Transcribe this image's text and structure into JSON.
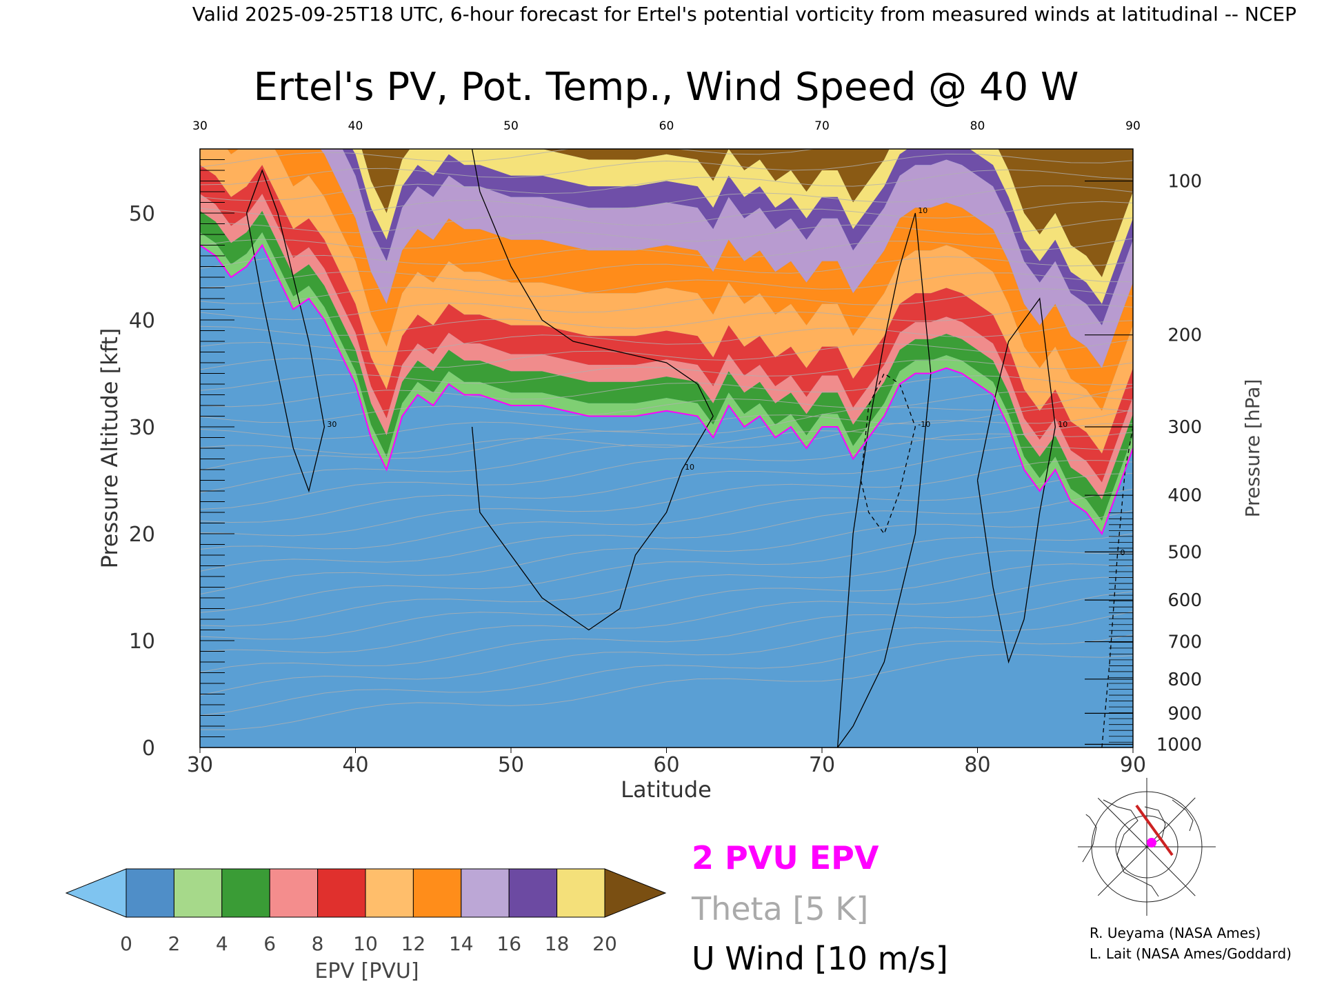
{
  "header": {
    "valid_line": "Valid 2025-09-25T18 UTC, 6-hour forecast for Ertel's potential vorticity from measured winds at latitudinal -- NCEP"
  },
  "chart_data": {
    "type": "heatmap",
    "title": "Ertel's PV, Pot. Temp., Wind Speed @ 40 W",
    "xlabel": "Latitude",
    "ylabel": "Pressure Altitude [kft]",
    "y2label": "Pressure [hPa]",
    "xlim": [
      30,
      90
    ],
    "ylim": [
      0,
      56
    ],
    "x_ticks": [
      "30",
      "40",
      "50",
      "60",
      "70",
      "80",
      "90"
    ],
    "y_ticks": [
      "0",
      "10",
      "20",
      "30",
      "40",
      "50"
    ],
    "top_x_ticks": [
      "30",
      "40",
      "50",
      "60",
      "70",
      "80",
      "90"
    ],
    "pressure_ticks": [
      {
        "label": "100",
        "kft": 53.0
      },
      {
        "label": "200",
        "kft": 38.6
      },
      {
        "label": "300",
        "kft": 30.0
      },
      {
        "label": "400",
        "kft": 23.6
      },
      {
        "label": "500",
        "kft": 18.3
      },
      {
        "label": "600",
        "kft": 13.8
      },
      {
        "label": "700",
        "kft": 9.9
      },
      {
        "label": "800",
        "kft": 6.4
      },
      {
        "label": "900",
        "kft": 3.2
      },
      {
        "label": "1000",
        "kft": 0.3
      }
    ],
    "pv2_tropopause": {
      "lat": [
        30,
        31,
        32,
        33,
        34,
        35,
        36,
        37,
        38,
        39,
        40,
        41,
        42,
        43,
        44,
        45,
        46,
        47,
        48,
        50,
        52,
        55,
        58,
        60,
        62,
        63,
        64,
        65,
        66,
        67,
        68,
        69,
        70,
        71,
        72,
        73,
        74,
        75,
        76,
        77,
        78,
        79,
        80,
        81,
        82,
        83,
        84,
        85,
        86,
        87,
        88,
        89,
        90
      ],
      "kft": [
        47,
        46,
        44,
        45,
        47,
        44,
        41,
        42,
        40,
        37,
        34,
        29,
        26,
        31,
        33,
        32,
        34,
        33,
        33,
        32,
        32,
        31,
        31,
        31.5,
        31,
        29,
        32,
        30,
        31,
        29,
        30,
        28,
        30,
        30,
        27,
        29,
        31,
        34,
        35,
        35,
        35.5,
        35,
        34,
        33,
        30,
        26,
        24,
        26,
        23,
        22,
        20,
        24,
        28
      ]
    },
    "epv_bands": {
      "boundaries_pvu": [
        0,
        2,
        4,
        6,
        8,
        10,
        12,
        14,
        16,
        18,
        20
      ],
      "offsets_kft_above_2pvu": [
        0,
        1.2,
        3.2,
        4.8,
        7.5,
        11.5,
        15.5,
        19.5,
        21.5,
        24
      ],
      "colors": [
        "#4a8fcc",
        "#7fcf73",
        "#3b9e37",
        "#f08c8c",
        "#e23b3b",
        "#ffb15c",
        "#ff8c1a",
        "#b89bd0",
        "#6f4fa8",
        "#f5e27a",
        "#8a5a14"
      ]
    },
    "colorbar": {
      "label": "EPV [PVU]",
      "ticks": [
        "0",
        "2",
        "4",
        "6",
        "8",
        "10",
        "12",
        "14",
        "16",
        "18",
        "20"
      ],
      "colors": [
        "#4f8ec8",
        "#a6d98a",
        "#3a9c36",
        "#f48d8d",
        "#e0302d",
        "#ffbe6b",
        "#ff8d1a",
        "#bca7d6",
        "#6c4aa2",
        "#f4e07a"
      ],
      "under_color": "#7fc4f0",
      "over_color": "#7a4f12"
    },
    "legend": [
      {
        "label": "2 PVU EPV",
        "color": "#ff00ff"
      },
      {
        "label": "Theta [5 K]",
        "color": "#aaaaaa"
      },
      {
        "label": "U Wind [10 m/s]",
        "color": "#000000"
      }
    ],
    "wind_contours": [
      {
        "label": "10",
        "dashed": false,
        "lat": [
          47.5,
          48,
          50,
          52,
          54,
          55,
          57,
          58,
          60,
          61,
          63,
          62,
          60,
          57,
          54,
          52,
          50,
          48,
          47.5
        ],
        "kft": [
          30,
          22,
          18,
          14,
          12,
          11,
          13,
          18,
          22,
          26,
          31,
          34,
          36,
          37,
          38,
          40,
          45,
          52,
          56
        ]
      },
      {
        "label": "30",
        "dashed": false,
        "lat": [
          33,
          34,
          35,
          36,
          37,
          38,
          37,
          36,
          35,
          34,
          33
        ],
        "kft": [
          50,
          42,
          35,
          28,
          24,
          30,
          38,
          44,
          50,
          54,
          50
        ]
      },
      {
        "label": "10",
        "dashed": false,
        "lat": [
          71,
          72,
          73,
          74,
          75,
          76,
          77,
          76,
          74,
          72,
          71
        ],
        "kft": [
          0,
          20,
          30,
          38,
          45,
          50,
          35,
          20,
          8,
          2,
          0
        ]
      },
      {
        "label": "-10",
        "dashed": true,
        "lat": [
          72.5,
          73,
          74,
          75,
          76,
          75,
          74,
          73,
          72.5
        ],
        "kft": [
          25,
          32,
          35,
          34,
          30,
          24,
          20,
          22,
          25
        ]
      },
      {
        "label": "10",
        "dashed": false,
        "lat": [
          80,
          81,
          82,
          83,
          84,
          85,
          84,
          83,
          82,
          81,
          80
        ],
        "kft": [
          25,
          32,
          38,
          40,
          42,
          30,
          22,
          12,
          8,
          15,
          25
        ]
      },
      {
        "label": "0",
        "dashed": true,
        "lat": [
          88,
          88.5,
          89,
          89.5,
          90
        ],
        "kft": [
          0,
          8,
          18,
          26,
          30
        ]
      }
    ]
  },
  "map_inset": {
    "name": "polar stereographic locator",
    "track_color": "#cc2222",
    "marker_color": "#ff00ff"
  },
  "credits": {
    "line1": "R. Ueyama (NASA Ames)",
    "line2": "L. Lait (NASA Ames/Goddard)"
  }
}
